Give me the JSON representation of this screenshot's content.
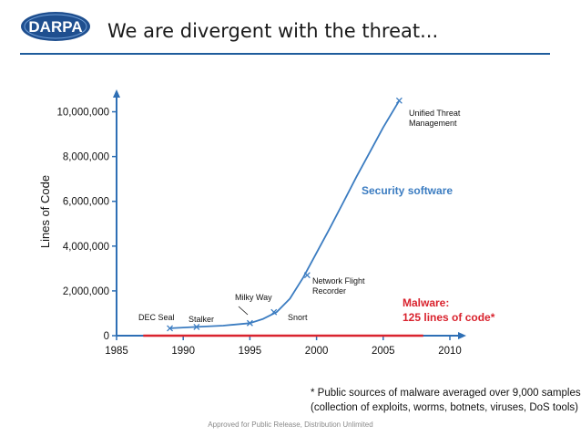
{
  "header": {
    "logo_text": "DARPA",
    "title": "We are divergent with the threat..."
  },
  "chart_data": {
    "type": "line",
    "ylabel": "Lines of Code",
    "xlabel": "",
    "xlim": [
      1985,
      2010
    ],
    "ylim": [
      0,
      11000000
    ],
    "x_ticks": [
      1985,
      1990,
      1995,
      2000,
      2005,
      2010
    ],
    "y_ticks": [
      0,
      2000000,
      4000000,
      6000000,
      8000000,
      10000000
    ],
    "x_tick_labels": [
      "1985",
      "1990",
      "1995",
      "2000",
      "2005",
      "2010"
    ],
    "y_tick_labels": [
      "0",
      "2,000,000",
      "4,000,000",
      "6,000,000",
      "8,000,000",
      "10,000,000"
    ],
    "grid": false,
    "series": [
      {
        "name": "Security software",
        "color": "#3b7cc1",
        "x": [
          1989,
          1991,
          1993,
          1995,
          1996,
          1997,
          1998,
          1999,
          2000,
          2001,
          2002,
          2003,
          2004,
          2005,
          2006.2
        ],
        "y": [
          330000,
          390000,
          450000,
          560000,
          750000,
          1050000,
          1650000,
          2600000,
          3700000,
          4800000,
          5950000,
          7100000,
          8200000,
          9300000,
          10500000
        ]
      },
      {
        "name": "Malware: 125 lines of code*",
        "color": "#d9232e",
        "x": [
          1987,
          2008
        ],
        "y": [
          125,
          125
        ]
      }
    ],
    "markers": [
      {
        "label": "DEC Seal",
        "x": 1989,
        "y": 330000
      },
      {
        "label": "Stalker",
        "x": 1991,
        "y": 390000
      },
      {
        "label": "Milky Way",
        "x": 1995,
        "y": 560000
      },
      {
        "label": "Snort",
        "x": 1996.8,
        "y": 1050000
      },
      {
        "label": "Network Flight Recorder",
        "x": 1999.3,
        "y": 2700000
      },
      {
        "label": "Unified Threat Management",
        "x": 2006.2,
        "y": 10500000
      }
    ],
    "series_labels": {
      "security": "Security software",
      "malware_line1": "Malware:",
      "malware_line2": "125 lines of code*"
    }
  },
  "footnote": {
    "line1": "* Public sources of malware averaged over 9,000 samples",
    "line2": "(collection of exploits, worms, botnets, viruses, DoS tools)"
  },
  "footer": {
    "text": "Approved for Public Release, Distribution Unlimited"
  }
}
